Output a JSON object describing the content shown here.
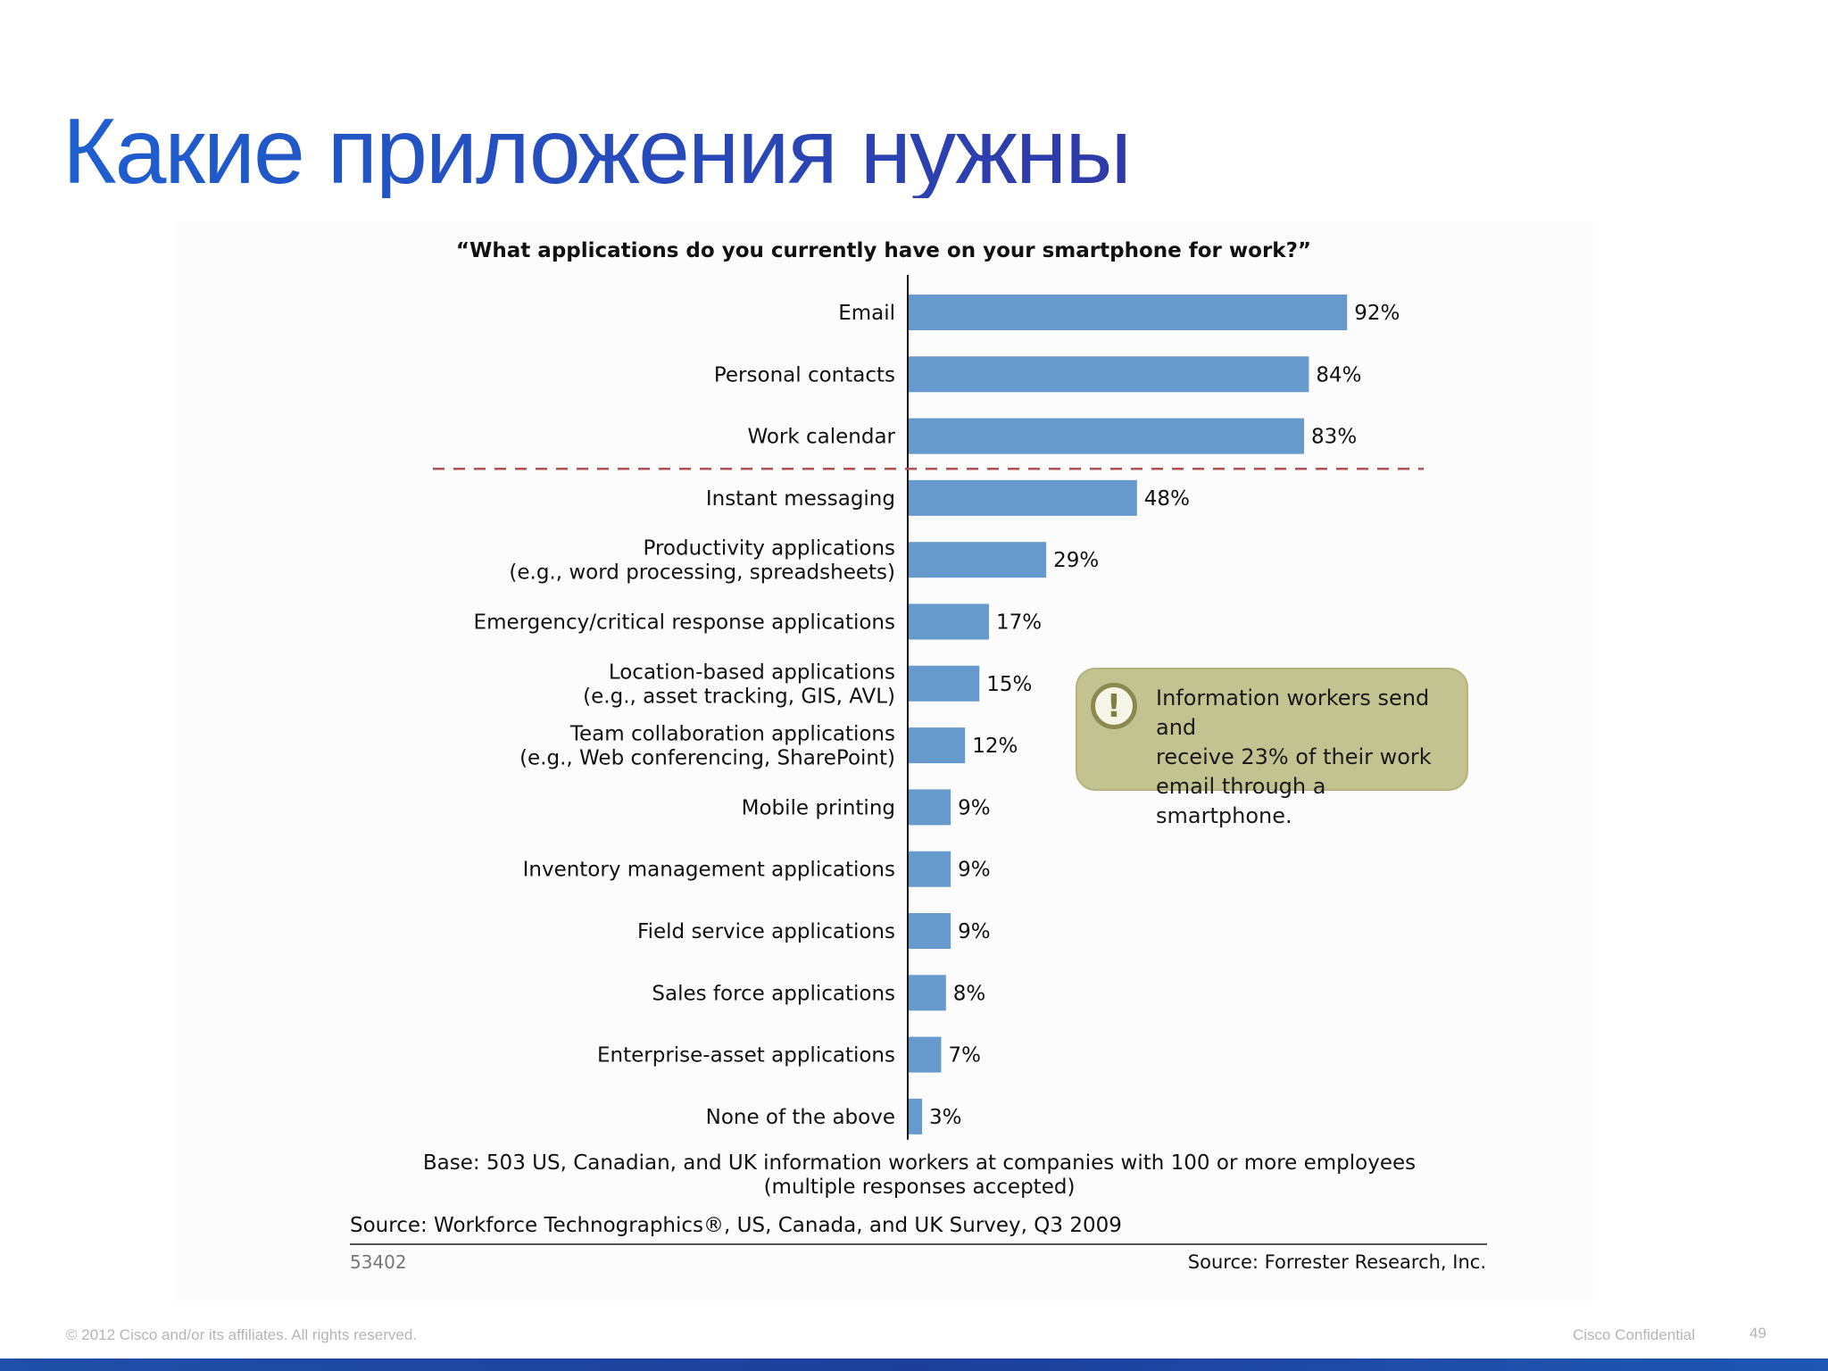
{
  "slide": {
    "title": "Какие приложения нужны",
    "footer_copyright": "© 2012 Cisco and/or its affiliates. All rights reserved.",
    "footer_confidential": "Cisco Confidential",
    "page_number": "49"
  },
  "chart_data": {
    "type": "bar",
    "orientation": "horizontal",
    "title": "“What applications do you currently have on your smartphone for work?”",
    "unit": "%",
    "xlim": [
      0,
      100
    ],
    "bar_color": "#6699cc",
    "separator_after_index": 2,
    "separator_color": "#b05050",
    "categories": [
      [
        "Email"
      ],
      [
        "Personal contacts"
      ],
      [
        "Work calendar"
      ],
      [
        "Instant messaging"
      ],
      [
        "Productivity applications",
        "(e.g., word processing, spreadsheets)"
      ],
      [
        "Emergency/critical response applications"
      ],
      [
        "Location-based applications",
        "(e.g., asset tracking, GIS, AVL)"
      ],
      [
        "Team collaboration applications",
        "(e.g., Web conferencing, SharePoint)"
      ],
      [
        "Mobile printing"
      ],
      [
        "Inventory management applications"
      ],
      [
        "Field service applications"
      ],
      [
        "Sales force applications"
      ],
      [
        "Enterprise-asset applications"
      ],
      [
        "None of the above"
      ]
    ],
    "values": [
      92,
      84,
      83,
      48,
      29,
      17,
      15,
      12,
      9,
      9,
      9,
      8,
      7,
      3
    ],
    "value_labels": [
      "92%",
      "84%",
      "83%",
      "48%",
      "29%",
      "17%",
      "15%",
      "12%",
      "9%",
      "9%",
      "9%",
      "8%",
      "7%",
      "3%"
    ],
    "callout": {
      "icon": "exclamation-icon",
      "text_lines": [
        "Information workers send and",
        "receive 23% of their work",
        "email through a smartphone."
      ]
    },
    "base_note_lines": [
      "Base: 503 US, Canadian, and UK information workers at companies with 100 or more employees",
      "(multiple responses accepted)"
    ],
    "source": "Source: Workforce Technographics®, US, Canada, and UK Survey, Q3 2009",
    "figure_id": "53402",
    "publisher_source": "Source: Forrester Research, Inc."
  }
}
